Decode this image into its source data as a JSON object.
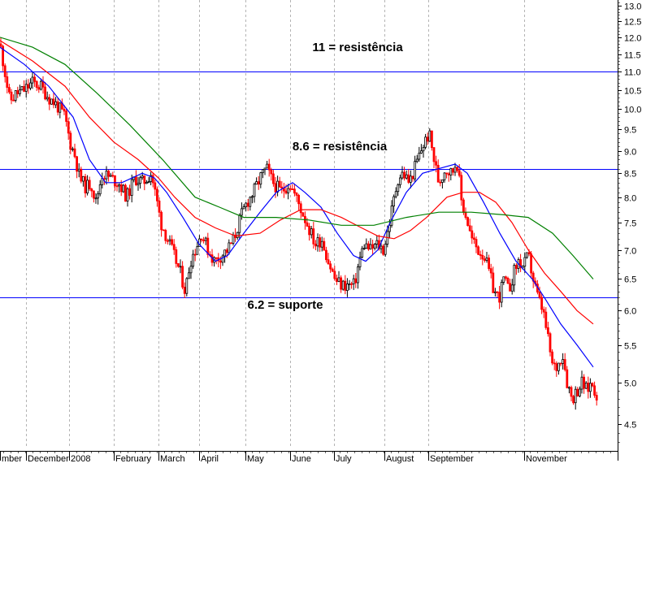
{
  "chart_data": {
    "type": "candlestick",
    "y_scale": "log",
    "ylim": [
      4.1,
      13.2
    ],
    "y_ticks": [
      "13.0",
      "12.5",
      "12.0",
      "11.5",
      "11.0",
      "10.5",
      "10.0",
      "9.5",
      "9.0",
      "8.5",
      "8.0",
      "7.5",
      "7.0",
      "6.5",
      "6.0",
      "5.5",
      "5.0",
      "4.5"
    ],
    "x_ticks": [
      "mber",
      "December",
      "2008",
      "February",
      "March",
      "April",
      "May",
      "June",
      "July",
      "August",
      "September",
      "November"
    ],
    "colors": {
      "up": "#000000",
      "down": "#ff0000",
      "ma_short": "#0000ff",
      "ma_mid": "#ff0000",
      "ma_long": "#008000",
      "hline": "#0000ff",
      "grid": "#b4b4b4"
    },
    "horizontal_lines": [
      {
        "value": 11.0,
        "label": "11 = resistência"
      },
      {
        "value": 8.6,
        "label": "8.6 = resistência"
      },
      {
        "value": 6.2,
        "label": "6.2 = suporte"
      }
    ],
    "close_path": [
      [
        0,
        11.8
      ],
      [
        6,
        11.0
      ],
      [
        12,
        10.2
      ],
      [
        20,
        10.4
      ],
      [
        30,
        10.5
      ],
      [
        40,
        10.7
      ],
      [
        50,
        10.6
      ],
      [
        60,
        10.3
      ],
      [
        70,
        10.1
      ],
      [
        80,
        9.8
      ],
      [
        86,
        9.2
      ],
      [
        92,
        8.9
      ],
      [
        98,
        8.4
      ],
      [
        106,
        8.2
      ],
      [
        112,
        8.3
      ],
      [
        118,
        7.9
      ],
      [
        126,
        8.5
      ],
      [
        136,
        8.4
      ],
      [
        146,
        8.3
      ],
      [
        156,
        8.0
      ],
      [
        166,
        8.4
      ],
      [
        176,
        8.3
      ],
      [
        186,
        8.5
      ],
      [
        192,
        8.0
      ],
      [
        198,
        7.5
      ],
      [
        206,
        7.2
      ],
      [
        214,
        6.9
      ],
      [
        222,
        6.6
      ],
      [
        228,
        6.3
      ],
      [
        234,
        6.8
      ],
      [
        240,
        7.0
      ],
      [
        248,
        7.3
      ],
      [
        256,
        7.0
      ],
      [
        264,
        6.8
      ],
      [
        272,
        6.9
      ],
      [
        280,
        7.0
      ],
      [
        288,
        7.2
      ],
      [
        296,
        7.6
      ],
      [
        304,
        7.9
      ],
      [
        312,
        8.1
      ],
      [
        320,
        8.4
      ],
      [
        328,
        8.6
      ],
      [
        336,
        8.3
      ],
      [
        346,
        8.1
      ],
      [
        356,
        8.3
      ],
      [
        364,
        8.0
      ],
      [
        372,
        7.7
      ],
      [
        380,
        7.4
      ],
      [
        388,
        7.1
      ],
      [
        396,
        7.2
      ],
      [
        404,
        6.8
      ],
      [
        412,
        6.5
      ],
      [
        420,
        6.4
      ],
      [
        428,
        6.4
      ],
      [
        436,
        6.4
      ],
      [
        442,
        6.8
      ],
      [
        448,
        7.1
      ],
      [
        456,
        7.0
      ],
      [
        464,
        7.1
      ],
      [
        472,
        7.0
      ],
      [
        478,
        7.4
      ],
      [
        484,
        7.9
      ],
      [
        490,
        8.4
      ],
      [
        496,
        8.5
      ],
      [
        504,
        8.3
      ],
      [
        512,
        8.7
      ],
      [
        520,
        9.1
      ],
      [
        528,
        9.4
      ],
      [
        534,
        8.8
      ],
      [
        540,
        8.3
      ],
      [
        548,
        8.6
      ],
      [
        556,
        8.5
      ],
      [
        562,
        8.8
      ],
      [
        568,
        7.9
      ],
      [
        574,
        7.6
      ],
      [
        580,
        7.2
      ],
      [
        588,
        7.0
      ],
      [
        596,
        6.9
      ],
      [
        602,
        6.6
      ],
      [
        608,
        6.3
      ],
      [
        614,
        6.2
      ],
      [
        620,
        6.5
      ],
      [
        626,
        6.3
      ],
      [
        632,
        6.6
      ],
      [
        638,
        6.8
      ],
      [
        644,
        6.7
      ],
      [
        650,
        6.9
      ],
      [
        656,
        6.5
      ],
      [
        662,
        6.2
      ],
      [
        668,
        6.0
      ],
      [
        674,
        5.6
      ],
      [
        680,
        5.2
      ],
      [
        686,
        5.2
      ],
      [
        692,
        5.4
      ],
      [
        698,
        5.0
      ],
      [
        704,
        4.8
      ],
      [
        710,
        4.9
      ],
      [
        716,
        5.0
      ],
      [
        722,
        4.9
      ],
      [
        728,
        5.0
      ],
      [
        734,
        4.85
      ]
    ],
    "moving_averages": [
      {
        "color": "blue",
        "points": [
          [
            0,
            11.7
          ],
          [
            30,
            11.2
          ],
          [
            60,
            10.6
          ],
          [
            90,
            9.8
          ],
          [
            110,
            8.8
          ],
          [
            130,
            8.3
          ],
          [
            150,
            8.3
          ],
          [
            175,
            8.5
          ],
          [
            190,
            8.4
          ],
          [
            205,
            8.1
          ],
          [
            225,
            7.6
          ],
          [
            245,
            7.1
          ],
          [
            265,
            6.8
          ],
          [
            280,
            6.9
          ],
          [
            300,
            7.3
          ],
          [
            320,
            7.7
          ],
          [
            340,
            8.1
          ],
          [
            360,
            8.3
          ],
          [
            375,
            8.1
          ],
          [
            395,
            7.8
          ],
          [
            415,
            7.3
          ],
          [
            435,
            6.9
          ],
          [
            450,
            6.8
          ],
          [
            465,
            7.0
          ],
          [
            480,
            7.5
          ],
          [
            500,
            8.1
          ],
          [
            520,
            8.5
          ],
          [
            540,
            8.6
          ],
          [
            560,
            8.7
          ],
          [
            575,
            8.5
          ],
          [
            595,
            7.9
          ],
          [
            615,
            7.3
          ],
          [
            635,
            6.8
          ],
          [
            655,
            6.5
          ],
          [
            670,
            6.2
          ],
          [
            690,
            5.8
          ],
          [
            710,
            5.5
          ],
          [
            730,
            5.2
          ]
        ]
      },
      {
        "color": "red",
        "points": [
          [
            0,
            11.9
          ],
          [
            40,
            11.3
          ],
          [
            80,
            10.6
          ],
          [
            110,
            9.8
          ],
          [
            140,
            9.2
          ],
          [
            170,
            8.8
          ],
          [
            195,
            8.4
          ],
          [
            215,
            8.0
          ],
          [
            240,
            7.6
          ],
          [
            265,
            7.4
          ],
          [
            290,
            7.25
          ],
          [
            320,
            7.3
          ],
          [
            345,
            7.55
          ],
          [
            370,
            7.75
          ],
          [
            395,
            7.75
          ],
          [
            420,
            7.6
          ],
          [
            445,
            7.4
          ],
          [
            465,
            7.25
          ],
          [
            485,
            7.2
          ],
          [
            505,
            7.35
          ],
          [
            525,
            7.6
          ],
          [
            550,
            8.0
          ],
          [
            570,
            8.1
          ],
          [
            590,
            8.1
          ],
          [
            610,
            7.9
          ],
          [
            630,
            7.5
          ],
          [
            650,
            7.0
          ],
          [
            670,
            6.6
          ],
          [
            690,
            6.3
          ],
          [
            710,
            6.0
          ],
          [
            730,
            5.8
          ]
        ]
      },
      {
        "color": "green",
        "points": [
          [
            0,
            12.0
          ],
          [
            40,
            11.7
          ],
          [
            80,
            11.2
          ],
          [
            120,
            10.4
          ],
          [
            160,
            9.6
          ],
          [
            200,
            8.8
          ],
          [
            240,
            8.0
          ],
          [
            270,
            7.8
          ],
          [
            300,
            7.6
          ],
          [
            340,
            7.6
          ],
          [
            380,
            7.55
          ],
          [
            420,
            7.45
          ],
          [
            460,
            7.45
          ],
          [
            500,
            7.6
          ],
          [
            540,
            7.7
          ],
          [
            580,
            7.7
          ],
          [
            620,
            7.65
          ],
          [
            650,
            7.6
          ],
          [
            680,
            7.3
          ],
          [
            705,
            6.9
          ],
          [
            730,
            6.5
          ]
        ]
      }
    ]
  }
}
